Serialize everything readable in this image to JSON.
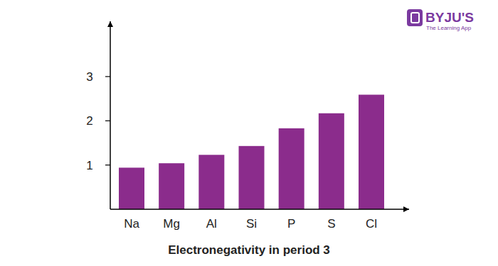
{
  "chart_data": {
    "type": "bar",
    "title": "Electronegativity in period 3",
    "categories": [
      "Na",
      "Mg",
      "Al",
      "Si",
      "P",
      "S",
      "Cl"
    ],
    "values": [
      0.94,
      1.04,
      1.23,
      1.43,
      1.83,
      2.17,
      2.59
    ],
    "color": "#8b2c8c",
    "ylim": [
      0,
      4.25
    ],
    "yticks": [
      1,
      2,
      3
    ],
    "grid": false,
    "annotations": [
      "BYJU'S",
      "The Learning App"
    ]
  }
}
